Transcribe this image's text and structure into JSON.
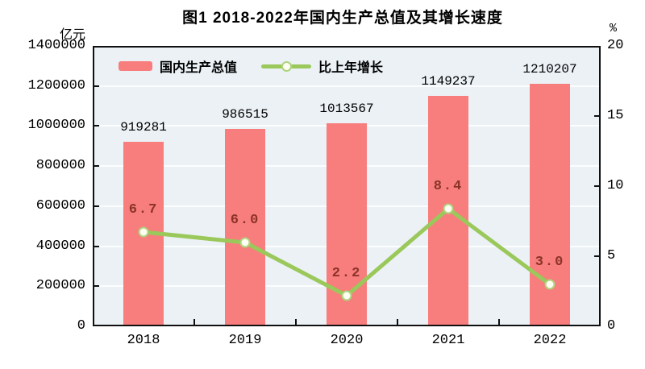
{
  "title": "图1  2018-2022年国内生产总值及其增长速度",
  "chart_data": {
    "type": "bar",
    "combo": "bar-line",
    "title": "图1  2018-2022年国内生产总值及其增长速度",
    "categories": [
      "2018",
      "2019",
      "2020",
      "2021",
      "2022"
    ],
    "series": [
      {
        "name": "国内生产总值",
        "type": "bar",
        "axis": "left",
        "values": [
          919281,
          986515,
          1013567,
          1149237,
          1210207
        ],
        "labels": [
          "919281",
          "986515",
          "1013567",
          "1149237",
          "1210207"
        ],
        "color": "#F87D7D"
      },
      {
        "name": "比上年增长",
        "type": "line",
        "axis": "right",
        "values": [
          6.7,
          6.0,
          2.2,
          8.4,
          3.0
        ],
        "labels": [
          "6.7",
          "6.0",
          "2.2",
          "8.4",
          "3.0"
        ],
        "color": "#9AC85A"
      }
    ],
    "left_axis": {
      "unit": "亿元",
      "min": 0,
      "max": 1400000,
      "tick_labels": [
        "1400000",
        "1200000",
        "1000000",
        "800000",
        "600000",
        "400000",
        "200000",
        "0"
      ]
    },
    "right_axis": {
      "unit": "%",
      "min": 0,
      "max": 20,
      "tick_labels": [
        "20",
        "15",
        "10",
        "5",
        "0"
      ]
    },
    "grid": true,
    "legend_position": "inside-top-left",
    "plot_background": "#EBF1F5",
    "colors": {
      "bar": "#F87D7D",
      "line": "#9AC85A",
      "marker_fill": "#FEFEF2",
      "marker_stroke": "#AED47E",
      "growth_label": "#8B3328",
      "frame": "#101010"
    }
  }
}
